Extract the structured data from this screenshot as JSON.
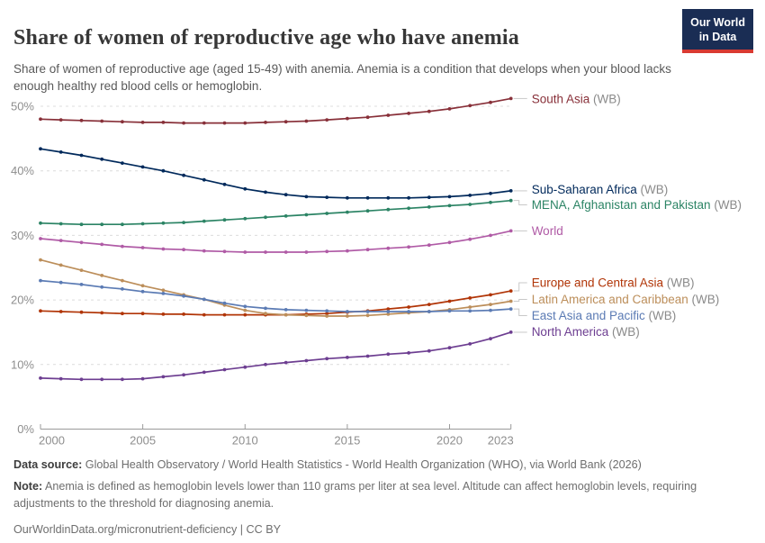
{
  "header": {
    "title": "Share of women of reproductive age who have anemia",
    "subtitle": "Share of women of reproductive age (aged 15-49) with anemia. Anemia is a condition that develops when your blood lacks enough healthy red blood cells or hemoglobin.",
    "logo": {
      "line1": "Our World",
      "line2": "in Data",
      "bg_color": "#1a2d54",
      "stripe_color": "#d93a32"
    }
  },
  "chart_data": {
    "type": "line",
    "title": "Share of women of reproductive age who have anemia",
    "xlabel": "",
    "ylabel": "",
    "xlim": [
      2000,
      2023
    ],
    "ylim": [
      0,
      52
    ],
    "grid": true,
    "legend_position": "right",
    "x_ticks": [
      2000,
      2005,
      2010,
      2015,
      2020,
      2023
    ],
    "y_ticks": [
      0,
      10,
      20,
      30,
      40,
      50
    ],
    "y_tick_suffix": "%",
    "x": [
      2000,
      2001,
      2002,
      2003,
      2004,
      2005,
      2006,
      2007,
      2008,
      2009,
      2010,
      2011,
      2012,
      2013,
      2014,
      2015,
      2016,
      2017,
      2018,
      2019,
      2020,
      2021,
      2022,
      2023
    ],
    "series": [
      {
        "key": "south-asia",
        "name": "South Asia",
        "suffix": " (WB)",
        "color": "#883039",
        "values": [
          48.0,
          47.9,
          47.8,
          47.7,
          47.6,
          47.5,
          47.5,
          47.4,
          47.4,
          47.4,
          47.4,
          47.5,
          47.6,
          47.7,
          47.9,
          48.1,
          48.3,
          48.6,
          48.9,
          49.2,
          49.6,
          50.1,
          50.6,
          51.2
        ]
      },
      {
        "key": "sub-saharan-africa",
        "name": "Sub-Saharan Africa",
        "suffix": " (WB)",
        "color": "#00295B",
        "values": [
          43.4,
          42.9,
          42.4,
          41.8,
          41.2,
          40.6,
          40.0,
          39.3,
          38.6,
          37.9,
          37.2,
          36.7,
          36.3,
          36.0,
          35.9,
          35.8,
          35.8,
          35.8,
          35.8,
          35.9,
          36.0,
          36.2,
          36.5,
          36.9
        ]
      },
      {
        "key": "mena-afghanistan-pakistan",
        "name": "MENA, Afghanistan and Pakistan",
        "suffix": " (WB)",
        "color": "#2C8465",
        "values": [
          31.9,
          31.8,
          31.7,
          31.7,
          31.7,
          31.8,
          31.9,
          32.0,
          32.2,
          32.4,
          32.6,
          32.8,
          33.0,
          33.2,
          33.4,
          33.6,
          33.8,
          34.0,
          34.2,
          34.4,
          34.6,
          34.8,
          35.1,
          35.4
        ]
      },
      {
        "key": "world",
        "name": "World",
        "suffix": "",
        "color": "#B05BA6",
        "values": [
          29.5,
          29.2,
          28.9,
          28.6,
          28.3,
          28.1,
          27.9,
          27.8,
          27.6,
          27.5,
          27.4,
          27.4,
          27.4,
          27.4,
          27.5,
          27.6,
          27.8,
          28.0,
          28.2,
          28.5,
          28.9,
          29.4,
          30.0,
          30.7
        ]
      },
      {
        "key": "europe-central-asia",
        "name": "Europe and Central Asia",
        "suffix": " (WB)",
        "color": "#B13507",
        "values": [
          18.3,
          18.2,
          18.1,
          18.0,
          17.9,
          17.9,
          17.8,
          17.8,
          17.7,
          17.7,
          17.7,
          17.7,
          17.7,
          17.8,
          17.9,
          18.1,
          18.3,
          18.6,
          18.9,
          19.3,
          19.8,
          20.3,
          20.8,
          21.4
        ]
      },
      {
        "key": "latin-america-caribbean",
        "name": "Latin America and Caribbean",
        "suffix": " (WB)",
        "color": "#BC8E5A",
        "values": [
          26.2,
          25.4,
          24.6,
          23.8,
          23.0,
          22.2,
          21.5,
          20.8,
          20.1,
          19.2,
          18.4,
          17.9,
          17.7,
          17.6,
          17.5,
          17.5,
          17.6,
          17.8,
          18.0,
          18.2,
          18.5,
          18.9,
          19.3,
          19.8
        ]
      },
      {
        "key": "east-asia-pacific",
        "name": "East Asia and Pacific",
        "suffix": " (WB)",
        "color": "#5B7BB4",
        "values": [
          23.0,
          22.7,
          22.4,
          22.0,
          21.7,
          21.3,
          21.0,
          20.6,
          20.1,
          19.5,
          19.0,
          18.7,
          18.5,
          18.4,
          18.3,
          18.2,
          18.2,
          18.2,
          18.2,
          18.2,
          18.3,
          18.3,
          18.4,
          18.6
        ]
      },
      {
        "key": "north-america",
        "name": "North America",
        "suffix": " (WB)",
        "color": "#6D3E91",
        "values": [
          7.9,
          7.8,
          7.7,
          7.7,
          7.7,
          7.8,
          8.1,
          8.4,
          8.8,
          9.2,
          9.6,
          10.0,
          10.3,
          10.6,
          10.9,
          11.1,
          11.3,
          11.6,
          11.8,
          12.1,
          12.6,
          13.2,
          14.0,
          15.0
        ]
      }
    ]
  },
  "footer": {
    "datasource_label": "Data source:",
    "datasource_text": " Global Health Observatory / World Health Statistics - World Health Organization (WHO), via World Bank (2026)",
    "note_label": "Note:",
    "note_text": " Anemia is defined as hemoglobin levels lower than 110 grams per liter at sea level. Altitude can affect hemoglobin levels, requiring adjustments to the threshold for diagnosing anemia.",
    "link": "OurWorldinData.org/micronutrient-deficiency | CC BY"
  }
}
